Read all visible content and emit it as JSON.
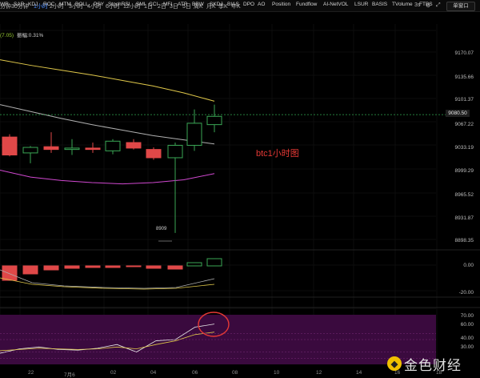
{
  "toolbar": {
    "timeframes": [
      "分钟",
      "30分钟",
      "1小时",
      "2小时",
      "3小时",
      "4小时",
      "6小时",
      "12小时",
      "1日",
      "2日",
      "3日",
      "5日",
      "周K",
      "月K",
      "季K",
      "年K"
    ],
    "active": "1小时",
    "interval_label": "3s",
    "single_window": "单窗口"
  },
  "legend": {
    "ma_value": "(7.05)",
    "amplitude": "振幅:0.31%"
  },
  "price_axis": [
    "9170.07",
    "9135.66",
    "9101.37",
    "9080.50",
    "9067.22",
    "9033.19",
    "8999.29",
    "8965.52",
    "8931.87",
    "8898.35"
  ],
  "current_price": "9080.50",
  "low_marker": "8909",
  "annotation": "btc1小时图",
  "volume_axis": [
    "0.00",
    "-20.00"
  ],
  "stoch_axis": [
    "70.00",
    "60.00",
    "40.00",
    "30.00"
  ],
  "indicators": [
    "WR",
    "SAR",
    "KDJ",
    "ROC",
    "MTM",
    "BOLL",
    "PSY",
    "StochRSI",
    "SMI",
    "CCI",
    "MFI",
    "ATR",
    "BBW",
    "SKDJ",
    "BIAS",
    "DPO",
    "AO",
    "Position",
    "Fundflow",
    "AI-NetVOL",
    "LSUR",
    "BASIS",
    "TVolume",
    "FTBS"
  ],
  "x_axis": [
    "22",
    "7月6",
    "02",
    "04",
    "06",
    "08",
    "10",
    "12",
    "14",
    "16",
    "18"
  ],
  "watermark": "金色财经",
  "chart_data": {
    "type": "candlestick",
    "interval": "1小时",
    "candles": [
      {
        "open": 9048,
        "high": 9052,
        "low": 9020,
        "close": 9022
      },
      {
        "open": 9025,
        "high": 9035,
        "low": 9010,
        "close": 9033
      },
      {
        "open": 9034,
        "high": 9055,
        "low": 9025,
        "close": 9030
      },
      {
        "open": 9030,
        "high": 9045,
        "low": 9022,
        "close": 9032
      },
      {
        "open": 9032,
        "high": 9040,
        "low": 9025,
        "close": 9030
      },
      {
        "open": 9028,
        "high": 9045,
        "low": 9023,
        "close": 9042
      },
      {
        "open": 9040,
        "high": 9045,
        "low": 9030,
        "close": 9032
      },
      {
        "open": 9030,
        "high": 9033,
        "low": 9015,
        "close": 9018
      },
      {
        "open": 9018,
        "high": 9040,
        "low": 8909,
        "close": 9036
      },
      {
        "open": 9036,
        "high": 9088,
        "low": 9028,
        "close": 9068
      },
      {
        "open": 9066,
        "high": 9095,
        "low": 9055,
        "close": 9078
      }
    ],
    "ma_lines": [
      {
        "color": "#e0c84a",
        "values": [
          9160,
          9152,
          9145,
          9138,
          9130,
          9122,
          9112,
          9100
        ]
      },
      {
        "color": "#b0b0b0",
        "values": [
          9095,
          9085,
          9075,
          9066,
          9058,
          9050,
          9044,
          9038
        ]
      },
      {
        "color": "#d048d0",
        "values": [
          9000,
          8990,
          8985,
          8982,
          8980,
          8982,
          8986,
          8995
        ]
      }
    ],
    "volume_bars": [
      -18,
      -10,
      -5,
      -3,
      -2,
      -2,
      -1,
      -3,
      -4,
      4,
      9
    ],
    "stoch": {
      "k": [
        38,
        45,
        48,
        44,
        43,
        46,
        52,
        40,
        58,
        60,
        80,
        85
      ],
      "d": [
        42,
        44,
        46,
        45,
        44,
        45,
        48,
        45,
        52,
        58,
        68,
        72
      ]
    }
  }
}
